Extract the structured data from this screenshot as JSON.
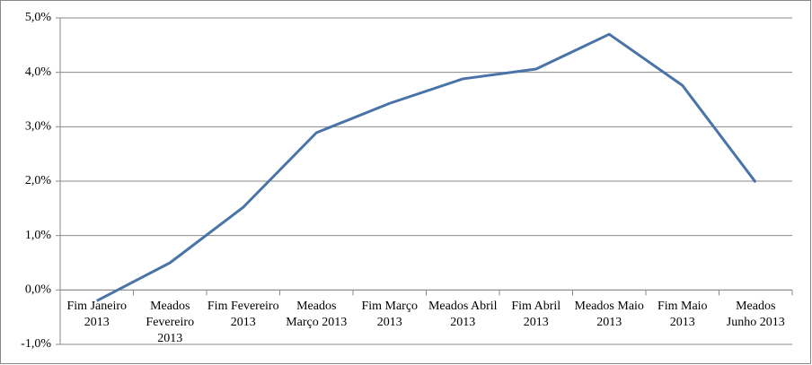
{
  "chart_data": {
    "type": "line",
    "categories": [
      "Fim Janeiro 2013",
      "Meados Fevereiro 2013",
      "Fim Fevereiro 2013",
      "Meados Março 2013",
      "Fim Março 2013",
      "Meados Abril 2013",
      "Fim Abril 2013",
      "Meados Maio 2013",
      "Fim Maio 2013",
      "Meados Junho 2013"
    ],
    "series": [
      {
        "color": "#4a74a8",
        "values": [
          -0.2,
          0.5,
          1.52,
          2.89,
          3.43,
          3.88,
          4.06,
          4.7,
          3.76,
          1.98
        ]
      }
    ],
    "ylim": [
      -1,
      5
    ],
    "yticks": [
      {
        "value": -1,
        "label": "-1,0%"
      },
      {
        "value": 0,
        "label": "0,0%"
      },
      {
        "value": 1,
        "label": "1,0%"
      },
      {
        "value": 2,
        "label": "2,0%"
      },
      {
        "value": 3,
        "label": "3,0%"
      },
      {
        "value": 4,
        "label": "4,0%"
      },
      {
        "value": 5,
        "label": "5,0%"
      }
    ],
    "grid": true
  }
}
